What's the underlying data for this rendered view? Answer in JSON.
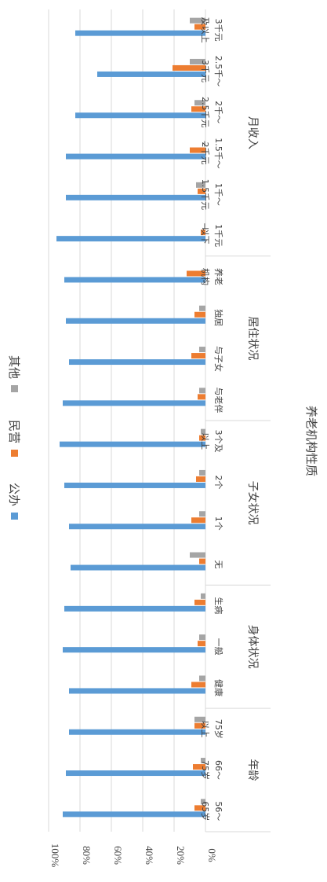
{
  "chart_data": {
    "type": "bar",
    "orientation": "horizontal",
    "title": "养老机构性质",
    "xlabel": "",
    "ylabel": "",
    "xlim": [
      0,
      100
    ],
    "x_ticks": [
      "0%",
      "20%",
      "40%",
      "60%",
      "80%",
      "100%"
    ],
    "grid": true,
    "legend_position": "top",
    "groups": [
      {
        "name": "年龄",
        "categories": [
          [
            "56～",
            "65岁"
          ],
          [
            "66～",
            "75岁"
          ],
          [
            "75岁",
            "以上"
          ]
        ]
      },
      {
        "name": "身体状况",
        "categories": [
          [
            "健康"
          ],
          [
            "一般"
          ],
          [
            "生病"
          ]
        ]
      },
      {
        "name": "子女状况",
        "categories": [
          [
            "无"
          ],
          [
            "1个"
          ],
          [
            "2个"
          ],
          [
            "3个及",
            "以上"
          ]
        ]
      },
      {
        "name": "居住状况",
        "categories": [
          [
            "与老伴"
          ],
          [
            "与子女"
          ],
          [
            "独居"
          ],
          [
            "养老",
            "机构"
          ]
        ]
      },
      {
        "name": "月收入",
        "categories": [
          [
            "1千元",
            "以下"
          ],
          [
            "1千～",
            "1.5千元"
          ],
          [
            "1.5千～",
            "2千元"
          ],
          [
            "2千～",
            "2.5千元"
          ],
          [
            "2.5千～",
            "3千元"
          ],
          [
            "3千元",
            "及以上"
          ]
        ]
      }
    ],
    "series": [
      {
        "name": "公办",
        "color": "#5B9BD5",
        "values": [
          91,
          89,
          87,
          87,
          91,
          90,
          86,
          87,
          90,
          93,
          91,
          87,
          89,
          90,
          95,
          89,
          89,
          83,
          69,
          83
        ]
      },
      {
        "name": "民营",
        "color": "#ED7D31",
        "values": [
          7,
          8,
          7,
          9,
          5,
          7,
          4,
          9,
          6,
          4,
          5,
          9,
          7,
          12,
          3,
          5,
          10,
          9,
          21,
          7
        ]
      },
      {
        "name": "其他",
        "color": "#A5A5A5",
        "values": [
          3,
          3,
          7,
          4,
          4,
          3,
          10,
          4,
          4,
          3,
          4,
          4,
          4,
          0,
          1,
          6,
          1,
          7,
          10,
          10
        ]
      }
    ]
  }
}
